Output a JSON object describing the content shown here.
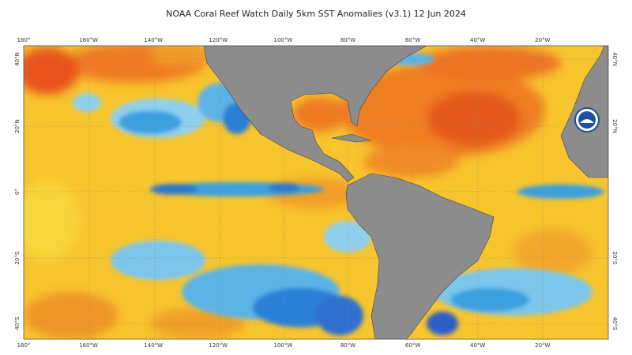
{
  "title": "NOAA Coral Reef Watch Daily 5km SST Anomalies  (v3.1)   12 Jun 2024",
  "top_axis": [
    "180°",
    "160°W",
    "140°W",
    "120°W",
    "100°W",
    "80°W",
    "60°W",
    "40°W",
    "20°W"
  ],
  "bottom_axis": [
    "180°",
    "160°W",
    "140°W",
    "120°W",
    "100°W",
    "80°W",
    "60°W",
    "40°W",
    "20°W"
  ],
  "left_axis": [
    "40°N",
    "20°N",
    "0°",
    "20°S",
    "40°S"
  ],
  "right_axis": [
    "40°N",
    "20°N",
    "20°S",
    "40°S"
  ]
}
